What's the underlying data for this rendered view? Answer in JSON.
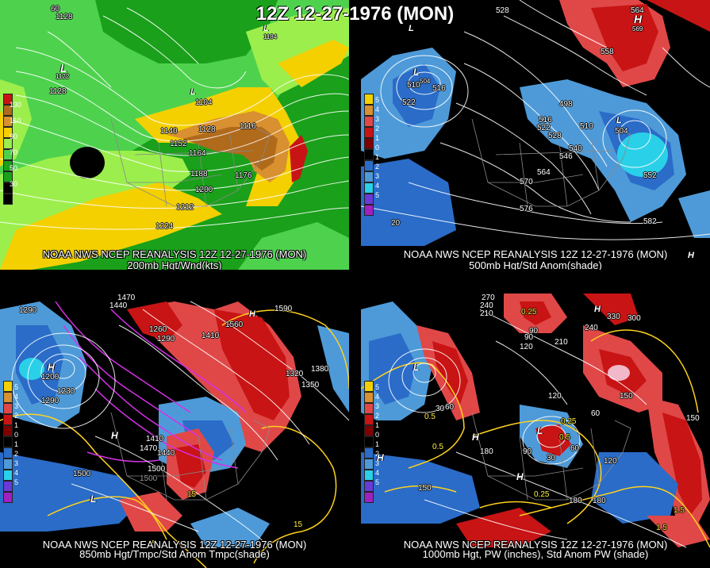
{
  "title": "12Z 12-27-1976 (MON)",
  "colors": {
    "wind_low": "#1aa01a",
    "wind_mid": "#4ed24e",
    "wind_lime": "#9cee4c",
    "wind_yellow": "#f4d000",
    "wind_orange": "#d89030",
    "wind_brown": "#b06a1c",
    "wind_red": "#c81414",
    "anom_pos_light": "#e04848",
    "anom_pos": "#c81414",
    "anom_neg_light": "#4e9ad8",
    "anom_neg": "#2a6cc8",
    "anom_cyan": "#2ad0e8",
    "contour": "#ffffff",
    "temp_contour": "#ffd21e",
    "cold_contour": "#d630e8"
  },
  "panels": [
    {
      "id": "p1",
      "caption_line1": "NOAA NWS NCEP REANALYSIS 12Z 12-27-1976 (MON)",
      "caption_line2": "200mb Hgt/Wnd(kts)",
      "legend_values": [
        "130",
        "110",
        "90",
        "70",
        "50",
        "30"
      ],
      "labels": [
        "1128",
        "1128",
        "L",
        "1122",
        "1104",
        "1140",
        "1152",
        "1164",
        "1128",
        "1116",
        "1188",
        "1176",
        "1200",
        "1212",
        "1224",
        "60",
        "1184",
        "1128"
      ],
      "extremes": [
        "L",
        "L"
      ]
    },
    {
      "id": "p2",
      "caption_line1": "NOAA NWS NCEP REANALYSIS 12Z 12-27-1976 (MON)",
      "caption_line2": "500mb Hgt/Std Anom(shade)",
      "legend_values": [
        "5",
        "4",
        "3",
        "2",
        "1",
        "0",
        "1",
        "2",
        "3",
        "4",
        "5"
      ],
      "labels": [
        "528",
        "564",
        "558",
        "510",
        "504",
        "516",
        "522",
        "498",
        "516",
        "522",
        "528",
        "510",
        "540",
        "546",
        "564",
        "504",
        "570",
        "552",
        "576",
        "582",
        "20",
        "H",
        "569",
        "L",
        "504"
      ],
      "extremes": [
        "L",
        "L",
        "H",
        "L"
      ]
    },
    {
      "id": "p3",
      "caption_line1": "NOAA NWS NCEP REANALYSIS 12Z 12-27-1976 (MON)",
      "caption_line2": "850mb Hgt/Tmpc/Std Anom Tmpc(shade)",
      "legend_values": [
        "5",
        "4",
        "3",
        "2",
        "1",
        "0",
        "1",
        "2",
        "3",
        "4",
        "5"
      ],
      "labels": [
        "1290",
        "1470",
        "1440",
        "1590",
        "1260",
        "1290",
        "1410",
        "1560",
        "1200",
        "1230",
        "1290",
        "1320",
        "1380",
        "1350",
        "1410",
        "1470",
        "1440",
        "1500",
        "1500",
        "1500",
        "15",
        "15",
        "15"
      ],
      "extremes": [
        "H",
        "H",
        "L",
        "H"
      ]
    },
    {
      "id": "p4",
      "caption_line1": "NOAA NWS NCEP REANALYSIS 12Z 12-27-1976 (MON)",
      "caption_line2": "1000mb Hgt, PW (inches), Std Anom PW (shade)",
      "legend_values": [
        "5",
        "4",
        "3",
        "2",
        "1",
        "0",
        "1",
        "2",
        "3",
        "4",
        "5"
      ],
      "labels": [
        "270",
        "240",
        "210",
        "330",
        "300",
        "0.25",
        "90",
        "120",
        "240",
        "210",
        "90",
        "30",
        "60",
        "120",
        "150",
        "60",
        "0.5",
        "0.25",
        "180",
        "60",
        "30",
        "120",
        "90",
        "0.25",
        "150",
        "180",
        "0.5",
        "1.5",
        "1.5",
        "0.5",
        "180",
        "150"
      ],
      "extremes": [
        "H",
        "H",
        "L",
        "H",
        "H",
        "L"
      ]
    }
  ]
}
